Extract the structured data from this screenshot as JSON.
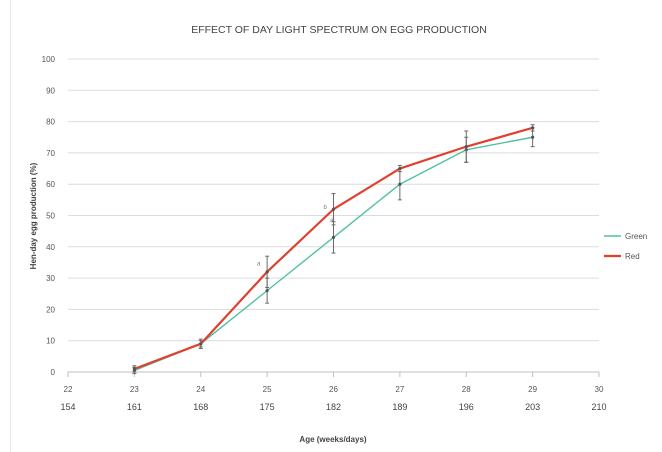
{
  "chart_data": {
    "type": "line",
    "title": "EFFECT OF DAY LIGHT SPECTRUM ON EGG PRODUCTION",
    "xlabel": "Age (weeks/days)",
    "ylabel": "Hen-day egg production (%)",
    "x_weeks": [
      22,
      23,
      24,
      25,
      26,
      27,
      28,
      29,
      30
    ],
    "x_days": [
      154,
      161,
      168,
      175,
      182,
      189,
      196,
      203,
      210
    ],
    "xlim": [
      22,
      30
    ],
    "ylim": [
      0,
      100
    ],
    "yticks": [
      0,
      10,
      20,
      30,
      40,
      50,
      60,
      70,
      80,
      90,
      100
    ],
    "grid": true,
    "legend_position": "right",
    "series": [
      {
        "name": "Green",
        "color": "#4fc1a6",
        "x": [
          23,
          24,
          25,
          26,
          27,
          28,
          29
        ],
        "y": [
          0.5,
          9,
          26,
          43,
          60,
          71,
          75
        ],
        "error": [
          1,
          1.5,
          4,
          5,
          5,
          4,
          3
        ]
      },
      {
        "name": "Red",
        "color": "#e0402e",
        "x": [
          23,
          24,
          25,
          26,
          27,
          28,
          29
        ],
        "y": [
          1,
          9,
          32,
          52,
          65,
          72,
          78
        ],
        "error": [
          1,
          1,
          5,
          5,
          1,
          5,
          1
        ]
      }
    ],
    "annotations": [
      {
        "text": "a",
        "x": 24.9,
        "y": 34
      },
      {
        "text": "b",
        "x": 25.9,
        "y": 52
      },
      {
        "text": "a",
        "x": 26.0,
        "y": 48
      }
    ]
  }
}
